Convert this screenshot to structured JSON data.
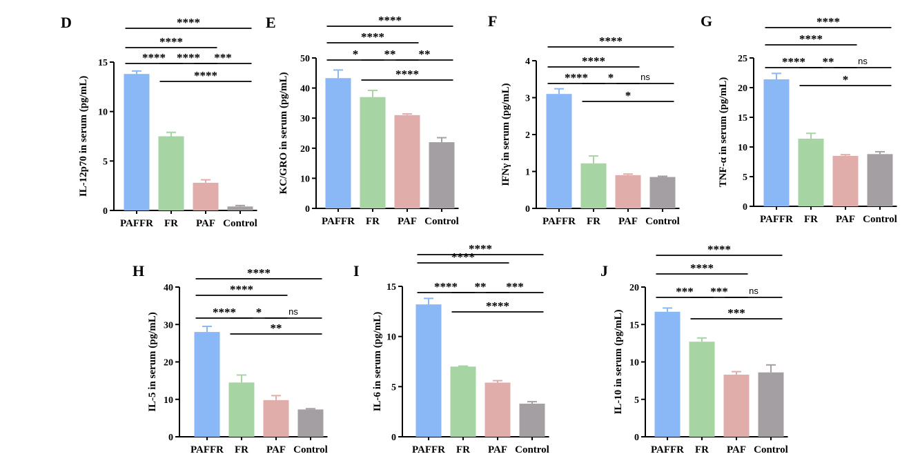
{
  "chart_data": [
    {
      "type": "bar",
      "panel": "D",
      "ylabel": "IL-12p70 in serum (pg/mL)",
      "categories": [
        "PAFFR",
        "FR",
        "PAF",
        "Control"
      ],
      "values": [
        13.8,
        7.5,
        2.8,
        0.4
      ],
      "errors": [
        0.3,
        0.4,
        0.3,
        0.1
      ],
      "ylim": [
        0,
        15
      ],
      "yticks": [
        0,
        5,
        10,
        15
      ],
      "significance": [
        {
          "from": 0,
          "to": 3,
          "label": "****",
          "level": 3
        },
        {
          "from": 0,
          "to": 2,
          "label": "****",
          "level": 2
        },
        {
          "from": 0,
          "to": 1,
          "label": "****",
          "level": 1
        },
        {
          "from": 1,
          "to": 2,
          "label": "****",
          "level": 1
        },
        {
          "from": 2,
          "to": 3,
          "label": "***",
          "level": 1
        },
        {
          "from": 1,
          "to": 3,
          "label": "****",
          "level": 0
        }
      ]
    },
    {
      "type": "bar",
      "panel": "E",
      "ylabel": "KC/GRO in serum (pg/mL)",
      "categories": [
        "PAFFR",
        "FR",
        "PAF",
        "Control"
      ],
      "values": [
        43.3,
        37.0,
        31.0,
        22.0
      ],
      "errors": [
        2.7,
        2.2,
        0.4,
        1.5
      ],
      "ylim": [
        0,
        50
      ],
      "yticks": [
        0,
        10,
        20,
        30,
        40,
        50
      ],
      "significance": [
        {
          "from": 0,
          "to": 3,
          "label": "****",
          "level": 3
        },
        {
          "from": 0,
          "to": 2,
          "label": "****",
          "level": 2
        },
        {
          "from": 0,
          "to": 1,
          "label": "*",
          "level": 1
        },
        {
          "from": 1,
          "to": 2,
          "label": "**",
          "level": 1
        },
        {
          "from": 2,
          "to": 3,
          "label": "**",
          "level": 1
        },
        {
          "from": 1,
          "to": 3,
          "label": "****",
          "level": 0
        }
      ]
    },
    {
      "type": "bar",
      "panel": "F",
      "ylabel": "IFNγ in serum (pg/mL)",
      "categories": [
        "PAFFR",
        "FR",
        "PAF",
        "Control"
      ],
      "values": [
        3.1,
        1.22,
        0.9,
        0.85
      ],
      "errors": [
        0.14,
        0.2,
        0.03,
        0.02
      ],
      "ylim": [
        0,
        4
      ],
      "yticks": [
        0,
        1,
        2,
        3,
        4
      ],
      "significance": [
        {
          "from": 0,
          "to": 3,
          "label": "****",
          "level": 3
        },
        {
          "from": 0,
          "to": 2,
          "label": "****",
          "level": 2
        },
        {
          "from": 0,
          "to": 1,
          "label": "****",
          "level": 1
        },
        {
          "from": 1,
          "to": 2,
          "label": "*",
          "level": 1
        },
        {
          "from": 2,
          "to": 3,
          "label": "ns",
          "level": 1
        },
        {
          "from": 1,
          "to": 3,
          "label": "*",
          "level": 0
        }
      ]
    },
    {
      "type": "bar",
      "panel": "G",
      "ylabel": "TNF-α in serum (pg/mL)",
      "categories": [
        "PAFFR",
        "FR",
        "PAF",
        "Control"
      ],
      "values": [
        21.4,
        11.4,
        8.5,
        8.8
      ],
      "errors": [
        1.0,
        0.9,
        0.2,
        0.4
      ],
      "ylim": [
        0,
        25
      ],
      "yticks": [
        0,
        5,
        10,
        15,
        20,
        25
      ],
      "significance": [
        {
          "from": 0,
          "to": 3,
          "label": "****",
          "level": 3
        },
        {
          "from": 0,
          "to": 2,
          "label": "****",
          "level": 2
        },
        {
          "from": 0,
          "to": 1,
          "label": "****",
          "level": 1
        },
        {
          "from": 1,
          "to": 2,
          "label": "**",
          "level": 1
        },
        {
          "from": 2,
          "to": 3,
          "label": "ns",
          "level": 1
        },
        {
          "from": 1,
          "to": 3,
          "label": "*",
          "level": 0
        }
      ]
    },
    {
      "type": "bar",
      "panel": "H",
      "ylabel": "IL-5 in serum (pg/mL)",
      "categories": [
        "PAFFR",
        "FR",
        "PAF",
        "Control"
      ],
      "values": [
        28.0,
        14.5,
        9.8,
        7.3
      ],
      "errors": [
        1.5,
        2.0,
        1.2,
        0.2
      ],
      "ylim": [
        0,
        40
      ],
      "yticks": [
        0,
        10,
        20,
        30,
        40
      ],
      "significance": [
        {
          "from": 0,
          "to": 3,
          "label": "****",
          "level": 3
        },
        {
          "from": 0,
          "to": 2,
          "label": "****",
          "level": 2
        },
        {
          "from": 0,
          "to": 1,
          "label": "****",
          "level": 1
        },
        {
          "from": 1,
          "to": 2,
          "label": "*",
          "level": 1
        },
        {
          "from": 2,
          "to": 3,
          "label": "ns",
          "level": 1
        },
        {
          "from": 1,
          "to": 3,
          "label": "**",
          "level": 0
        }
      ]
    },
    {
      "type": "bar",
      "panel": "I",
      "ylabel": "IL-6 in serum (pg/mL)",
      "categories": [
        "PAFFR",
        "FR",
        "PAF",
        "Control"
      ],
      "values": [
        13.2,
        7.0,
        5.4,
        3.3
      ],
      "errors": [
        0.6,
        0.05,
        0.2,
        0.2
      ],
      "ylim": [
        0,
        15
      ],
      "yticks": [
        0,
        5,
        10,
        15
      ],
      "significance": [
        {
          "from": 0,
          "to": 3,
          "label": "****",
          "level": 3
        },
        {
          "from": 0,
          "to": 2,
          "label": "****",
          "level": 2
        },
        {
          "from": 0,
          "to": 1,
          "label": "****",
          "level": 1
        },
        {
          "from": 1,
          "to": 2,
          "label": "**",
          "level": 1
        },
        {
          "from": 2,
          "to": 3,
          "label": "***",
          "level": 1
        },
        {
          "from": 1,
          "to": 3,
          "label": "****",
          "level": 0
        }
      ]
    },
    {
      "type": "bar",
      "panel": "J",
      "ylabel": "IL-10 in serum (pg/mL)",
      "categories": [
        "PAFFR",
        "FR",
        "PAF",
        "Control"
      ],
      "values": [
        16.7,
        12.7,
        8.3,
        8.6
      ],
      "errors": [
        0.5,
        0.5,
        0.4,
        1.0
      ],
      "ylim": [
        0,
        20
      ],
      "yticks": [
        0,
        5,
        10,
        15,
        20
      ],
      "significance": [
        {
          "from": 0,
          "to": 3,
          "label": "****",
          "level": 3
        },
        {
          "from": 0,
          "to": 2,
          "label": "****",
          "level": 2
        },
        {
          "from": 0,
          "to": 1,
          "label": "***",
          "level": 1
        },
        {
          "from": 1,
          "to": 2,
          "label": "***",
          "level": 1
        },
        {
          "from": 2,
          "to": 3,
          "label": "ns",
          "level": 1
        },
        {
          "from": 1,
          "to": 3,
          "label": "***",
          "level": 0
        }
      ]
    }
  ],
  "colors": {
    "bars": [
      "#8ab8f7",
      "#a6d5a3",
      "#e0adab",
      "#a39fa3"
    ],
    "errors": [
      "#8ab8f7",
      "#a6d5a3",
      "#e0adab",
      "#a39fa3"
    ]
  }
}
